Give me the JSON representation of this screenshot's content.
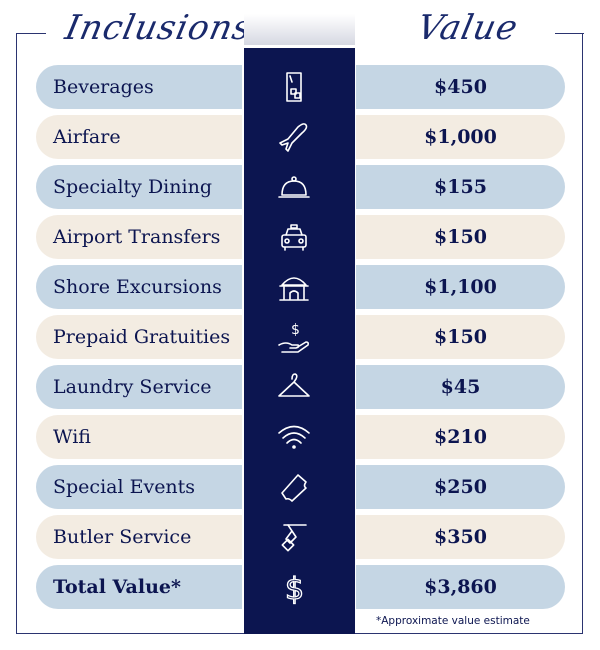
{
  "headers": {
    "left": "Inclusions",
    "right": "Value"
  },
  "rows": [
    {
      "label": "Beverages",
      "value": "$450",
      "icon": "glass-ice-icon"
    },
    {
      "label": "Airfare",
      "value": "$1,000",
      "icon": "airplane-icon"
    },
    {
      "label": "Specialty Dining",
      "value": "$155",
      "icon": "cloche-icon"
    },
    {
      "label": "Airport Transfers",
      "value": "$150",
      "icon": "taxi-icon"
    },
    {
      "label": "Shore Excursions",
      "value": "$1,100",
      "icon": "landmark-icon"
    },
    {
      "label": "Prepaid Gratuities",
      "value": "$150",
      "icon": "hand-dollar-icon"
    },
    {
      "label": "Laundry Service",
      "value": "$45",
      "icon": "hanger-icon"
    },
    {
      "label": "Wifi",
      "value": "$210",
      "icon": "wifi-icon"
    },
    {
      "label": "Special Events",
      "value": "$250",
      "icon": "ticket-icon"
    },
    {
      "label": "Butler Service",
      "value": "$350",
      "icon": "butler-tray-icon"
    }
  ],
  "total": {
    "label": "Total Value*",
    "value": "$3,860",
    "icon": "dollar-icon"
  },
  "footnote": "*Approximate value estimate",
  "colors": {
    "navy": "#0c1550",
    "blue": "#c5d6e4",
    "beige": "#f3ece2"
  }
}
